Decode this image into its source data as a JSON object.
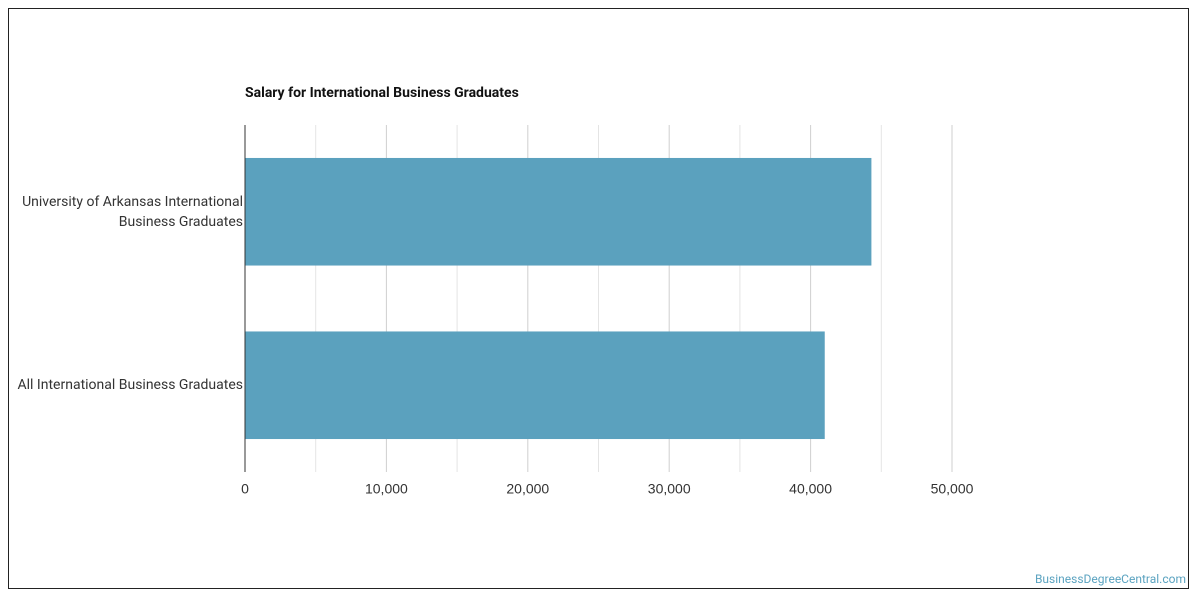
{
  "chart_data": {
    "type": "bar",
    "orientation": "horizontal",
    "title": "Salary for International Business Graduates",
    "categories": [
      "University of Arkansas International Business Graduates",
      "All International Business Graduates"
    ],
    "values": [
      44300,
      41000
    ],
    "color": "#5ba1be",
    "xlim": [
      0,
      50000
    ],
    "xticks": [
      0,
      {
        "value": 10000,
        "label": "10,000"
      },
      {
        "value": 20000,
        "label": "20,000"
      },
      {
        "value": 30000,
        "label": "30,000"
      },
      {
        "value": 40000,
        "label": "40,000"
      },
      {
        "value": 50000,
        "label": "50,000"
      }
    ],
    "minor_xticks": [
      5000,
      15000,
      25000,
      35000,
      45000
    ],
    "grid": true,
    "source": "BusinessDegreeCentral.com"
  }
}
